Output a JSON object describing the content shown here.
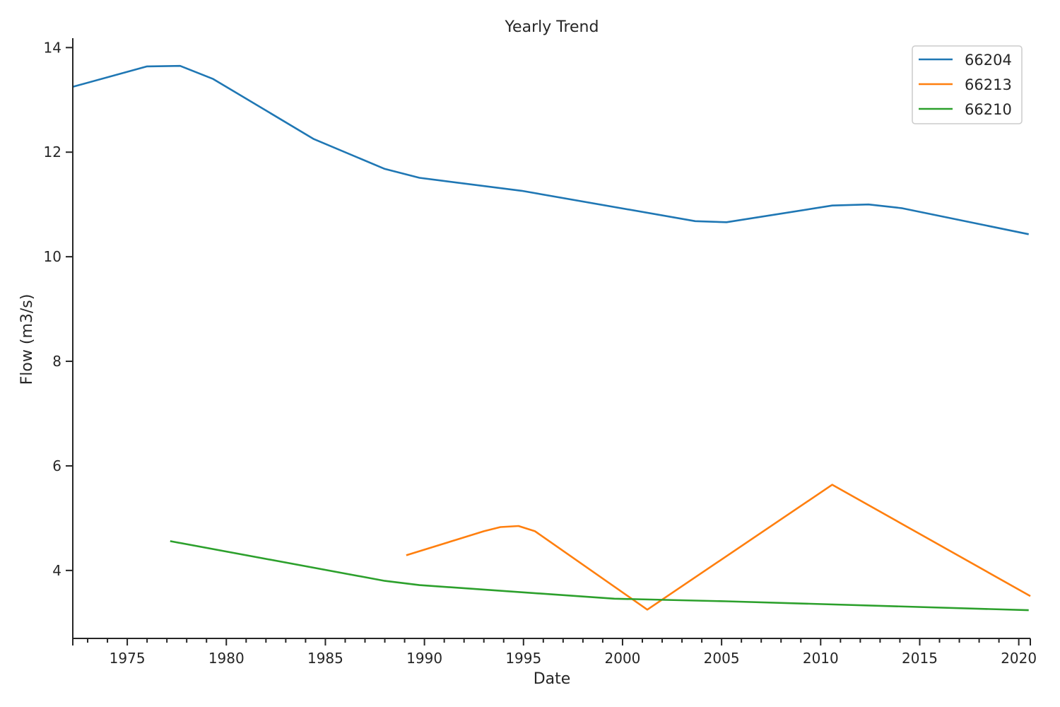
{
  "chart_data": {
    "type": "line",
    "title": "Yearly Trend",
    "xlabel": "Date",
    "ylabel": "Flow (m3/s)",
    "xlim": [
      "1972-04-01",
      "2020-08-01"
    ],
    "ylim": [
      2.7,
      14.18
    ],
    "x_major_ticks": [
      1975,
      1980,
      1985,
      1990,
      1995,
      2000,
      2005,
      2010,
      2015,
      2020
    ],
    "y_ticks": [
      4,
      6,
      8,
      10,
      12,
      14
    ],
    "legend_position": "top-right",
    "grid": false,
    "series": [
      {
        "name": "66204",
        "color": "#1f77b4",
        "points": [
          [
            "1972-04-01",
            13.25
          ],
          [
            "1976-01-01",
            13.64
          ],
          [
            "1977-09-01",
            13.65
          ],
          [
            "1979-05-01",
            13.4
          ],
          [
            "1984-06-01",
            12.25
          ],
          [
            "1988-01-01",
            11.68
          ],
          [
            "1989-10-01",
            11.51
          ],
          [
            "1994-12-01",
            11.26
          ],
          [
            "2003-09-01",
            10.68
          ],
          [
            "2005-04-01",
            10.66
          ],
          [
            "2010-08-01",
            10.98
          ],
          [
            "2012-06-01",
            11.0
          ],
          [
            "2014-02-01",
            10.93
          ],
          [
            "2020-07-01",
            10.43
          ]
        ]
      },
      {
        "name": "66213",
        "color": "#ff7f0e",
        "points": [
          [
            "1989-02-01",
            4.29
          ],
          [
            "1993-01-01",
            4.75
          ],
          [
            "1993-11-01",
            4.83
          ],
          [
            "1994-10-01",
            4.85
          ],
          [
            "1995-08-01",
            4.75
          ],
          [
            "2001-04-01",
            3.25
          ],
          [
            "2010-08-01",
            5.64
          ],
          [
            "2020-08-01",
            3.51
          ]
        ]
      },
      {
        "name": "66210",
        "color": "#2ca02c",
        "points": [
          [
            "1977-03-01",
            4.56
          ],
          [
            "1988-01-01",
            3.8
          ],
          [
            "1989-10-01",
            3.72
          ],
          [
            "1999-08-01",
            3.46
          ],
          [
            "2005-04-01",
            3.41
          ],
          [
            "2020-07-01",
            3.24
          ]
        ]
      }
    ]
  }
}
